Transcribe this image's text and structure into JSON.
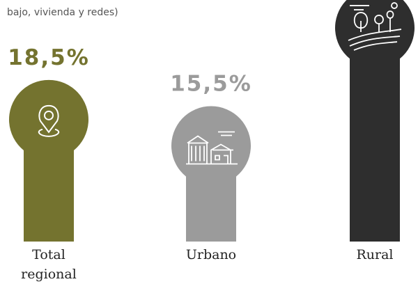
{
  "chart_data": {
    "type": "bar",
    "subtitle": "bajo, vivienda y redes)",
    "categories": [
      "Total regional",
      "Urbano",
      "Rural"
    ],
    "values": [
      18.5,
      15.5,
      29
    ],
    "value_labels": [
      "18,5%",
      "15,5%",
      null
    ],
    "colors": [
      "#74732f",
      "#9b9b9b",
      "#2e2e2e"
    ]
  }
}
